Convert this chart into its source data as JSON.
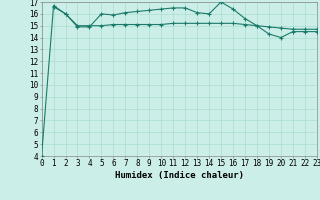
{
  "line1_x": [
    0,
    1,
    2,
    3,
    4,
    5,
    6,
    7,
    8,
    9,
    10,
    11,
    12,
    13,
    14,
    15,
    16,
    17,
    18,
    19,
    20,
    21,
    22,
    23
  ],
  "line1_y": [
    4.0,
    16.7,
    16.0,
    14.9,
    14.9,
    16.0,
    15.9,
    16.1,
    16.2,
    16.3,
    16.4,
    16.5,
    16.5,
    16.1,
    16.0,
    17.0,
    16.4,
    15.6,
    15.0,
    14.3,
    14.0,
    14.5,
    14.5,
    14.5
  ],
  "line2_x": [
    1,
    2,
    3,
    4,
    5,
    6,
    7,
    8,
    9,
    10,
    11,
    12,
    13,
    14,
    15,
    16,
    17,
    18,
    19,
    20,
    21,
    22,
    23
  ],
  "line2_y": [
    16.6,
    16.0,
    15.0,
    15.0,
    15.0,
    15.1,
    15.1,
    15.1,
    15.1,
    15.1,
    15.2,
    15.2,
    15.2,
    15.2,
    15.2,
    15.2,
    15.1,
    15.0,
    14.9,
    14.8,
    14.7,
    14.7,
    14.7
  ],
  "color": "#1a7a6a",
  "bg_color": "#cceee8",
  "grid_color": "#aaddcc",
  "xlabel": "Humidex (Indice chaleur)",
  "xlim": [
    0,
    23
  ],
  "ylim": [
    4,
    17
  ],
  "yticks": [
    4,
    5,
    6,
    7,
    8,
    9,
    10,
    11,
    12,
    13,
    14,
    15,
    16,
    17
  ],
  "xticks": [
    0,
    1,
    2,
    3,
    4,
    5,
    6,
    7,
    8,
    9,
    10,
    11,
    12,
    13,
    14,
    15,
    16,
    17,
    18,
    19,
    20,
    21,
    22,
    23
  ],
  "marker": "+",
  "marker_size": 3,
  "linewidth": 0.8,
  "xlabel_fontsize": 6.5,
  "tick_fontsize": 5.5
}
